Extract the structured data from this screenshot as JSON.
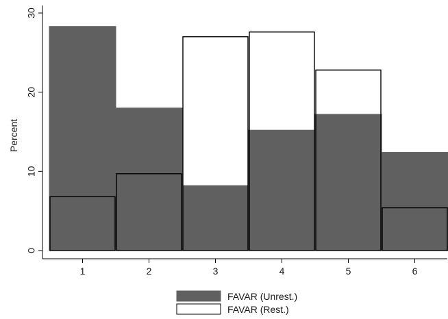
{
  "chart_data": {
    "type": "bar",
    "categories": [
      "1",
      "2",
      "3",
      "4",
      "5",
      "6"
    ],
    "series": [
      {
        "name": "FAVAR (Unrest.)",
        "values": [
          28.3,
          18.0,
          8.2,
          15.2,
          17.2,
          12.4
        ],
        "color": "#606060",
        "stroke": "#606060"
      },
      {
        "name": "FAVAR (Rest.)",
        "values": [
          6.8,
          9.7,
          27.0,
          27.6,
          22.8,
          5.4
        ],
        "color": "none",
        "stroke": "#000000"
      }
    ],
    "title": "",
    "xlabel": "",
    "ylabel": "Percent",
    "ylim": [
      0,
      30
    ],
    "yticks": [
      0,
      10,
      20,
      30
    ],
    "grid": false,
    "legend": "bottom"
  }
}
